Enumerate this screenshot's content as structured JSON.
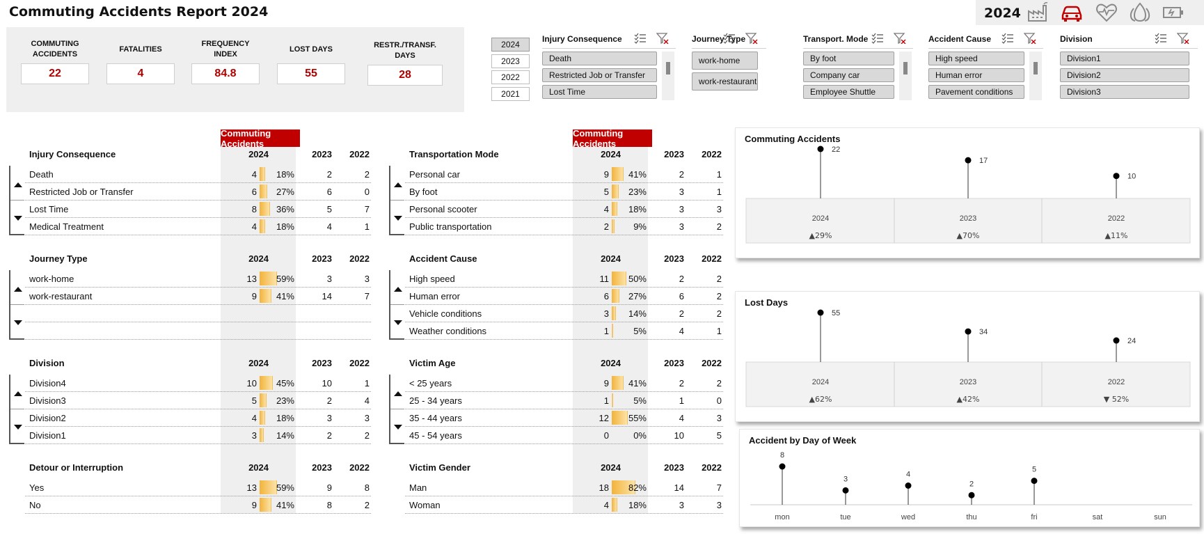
{
  "title": "Commuting Accidents Report 2024",
  "topbar": {
    "year": "2024",
    "icons": [
      "factory-icon",
      "car-icon",
      "heart-pulse-icon",
      "fire-icon",
      "battery-icon"
    ],
    "active_icon_color": "#c00000"
  },
  "kpis": [
    {
      "label": "COMMUTING ACCIDENTS",
      "value": "22"
    },
    {
      "label": "FATALITIES",
      "value": "4"
    },
    {
      "label": "FREQUENCY INDEX",
      "value": "84.8"
    },
    {
      "label": "LOST DAYS",
      "value": "55"
    },
    {
      "label": "RESTR./TRANSF. DAYS",
      "value": "28"
    }
  ],
  "years": [
    "2024",
    "2023",
    "2022",
    "2021"
  ],
  "slicers": [
    {
      "title": "Injury Consequence",
      "items": [
        "Death",
        "Restricted Job or Transfer",
        "Lost Time"
      ]
    },
    {
      "title": "Journey Type",
      "items": [
        "work-home",
        "work-restaurant"
      ]
    },
    {
      "title": "Transport. Mode",
      "items": [
        "By foot",
        "Company car",
        "Employee Shuttle"
      ]
    },
    {
      "title": "Accident Cause",
      "items": [
        "High speed",
        "Human error",
        "Pavement conditions"
      ]
    },
    {
      "title": "Division",
      "items": [
        "Division1",
        "Division2",
        "Division3"
      ]
    }
  ],
  "tables": {
    "header": "Commuting Accidents",
    "cols": [
      "2024",
      "2023",
      "2022"
    ],
    "left": [
      {
        "title": "Injury Consequence",
        "rows": [
          {
            "name": "Death",
            "v24": "4",
            "pct": "18%",
            "f": 0.18,
            "v23": "2",
            "v22": "2"
          },
          {
            "name": "Restricted Job or Transfer",
            "v24": "6",
            "pct": "27%",
            "f": 0.27,
            "v23": "6",
            "v22": "0"
          },
          {
            "name": "Lost Time",
            "v24": "8",
            "pct": "36%",
            "f": 0.36,
            "v23": "5",
            "v22": "7"
          },
          {
            "name": "Medical Treatment",
            "v24": "4",
            "pct": "18%",
            "f": 0.18,
            "v23": "4",
            "v22": "1"
          }
        ]
      },
      {
        "title": "Journey Type",
        "rows": [
          {
            "name": "work-home",
            "v24": "13",
            "pct": "59%",
            "f": 0.59,
            "v23": "3",
            "v22": "3"
          },
          {
            "name": "work-restaurant",
            "v24": "9",
            "pct": "41%",
            "f": 0.41,
            "v23": "14",
            "v22": "7"
          },
          {
            "name": "",
            "v24": "",
            "pct": "",
            "f": 0,
            "v23": "",
            "v22": ""
          },
          {
            "name": "",
            "v24": "",
            "pct": "",
            "f": 0,
            "v23": "",
            "v22": ""
          }
        ]
      },
      {
        "title": "Division",
        "rows": [
          {
            "name": "Division4",
            "v24": "10",
            "pct": "45%",
            "f": 0.45,
            "v23": "10",
            "v22": "1"
          },
          {
            "name": "Division3",
            "v24": "5",
            "pct": "23%",
            "f": 0.23,
            "v23": "2",
            "v22": "4"
          },
          {
            "name": "Division2",
            "v24": "4",
            "pct": "18%",
            "f": 0.18,
            "v23": "3",
            "v22": "3"
          },
          {
            "name": "Division1",
            "v24": "3",
            "pct": "14%",
            "f": 0.14,
            "v23": "2",
            "v22": "2"
          }
        ]
      },
      {
        "title": "Detour or Interruption",
        "rows": [
          {
            "name": "Yes",
            "v24": "13",
            "pct": "59%",
            "f": 0.59,
            "v23": "9",
            "v22": "8"
          },
          {
            "name": "No",
            "v24": "9",
            "pct": "41%",
            "f": 0.41,
            "v23": "8",
            "v22": "2"
          }
        ]
      }
    ],
    "right": [
      {
        "title": "Transportation Mode",
        "rows": [
          {
            "name": "Personal car",
            "v24": "9",
            "pct": "41%",
            "f": 0.41,
            "v23": "2",
            "v22": "1"
          },
          {
            "name": "By foot",
            "v24": "5",
            "pct": "23%",
            "f": 0.23,
            "v23": "3",
            "v22": "1"
          },
          {
            "name": "Personal scooter",
            "v24": "4",
            "pct": "18%",
            "f": 0.18,
            "v23": "3",
            "v22": "3"
          },
          {
            "name": "Public transportation",
            "v24": "2",
            "pct": "9%",
            "f": 0.09,
            "v23": "3",
            "v22": "2"
          }
        ]
      },
      {
        "title": "Accident Cause",
        "rows": [
          {
            "name": "High speed",
            "v24": "11",
            "pct": "50%",
            "f": 0.5,
            "v23": "2",
            "v22": "2"
          },
          {
            "name": "Human error",
            "v24": "6",
            "pct": "27%",
            "f": 0.27,
            "v23": "6",
            "v22": "2"
          },
          {
            "name": "Vehicle conditions",
            "v24": "3",
            "pct": "14%",
            "f": 0.14,
            "v23": "2",
            "v22": "2"
          },
          {
            "name": "Weather conditions",
            "v24": "1",
            "pct": "5%",
            "f": 0.05,
            "v23": "4",
            "v22": "1"
          }
        ]
      },
      {
        "title": "Victim Age",
        "rows": [
          {
            "name": "< 25 years",
            "v24": "9",
            "pct": "41%",
            "f": 0.41,
            "v23": "2",
            "v22": "2"
          },
          {
            "name": "25 - 34 years",
            "v24": "1",
            "pct": "5%",
            "f": 0.05,
            "v23": "1",
            "v22": "0"
          },
          {
            "name": "35 - 44 years",
            "v24": "12",
            "pct": "55%",
            "f": 0.55,
            "v23": "4",
            "v22": "3"
          },
          {
            "name": "45 - 54 years",
            "v24": "0",
            "pct": "0%",
            "f": 0,
            "v23": "10",
            "v22": "5"
          }
        ]
      },
      {
        "title": "Victim Gender",
        "rows": [
          {
            "name": "Man",
            "v24": "18",
            "pct": "82%",
            "f": 0.82,
            "v23": "14",
            "v22": "7"
          },
          {
            "name": "Woman",
            "v24": "4",
            "pct": "18%",
            "f": 0.18,
            "v23": "3",
            "v22": "3"
          }
        ]
      }
    ]
  },
  "chart_data": [
    {
      "type": "line",
      "title": "Commuting Accidents",
      "categories": [
        "2024",
        "2023",
        "2022"
      ],
      "values": [
        22,
        17,
        10
      ],
      "changes": [
        "▲29%",
        "▲70%",
        "▲11%"
      ]
    },
    {
      "type": "line",
      "title": "Lost Days",
      "categories": [
        "2024",
        "2023",
        "2022"
      ],
      "values": [
        55,
        34,
        24
      ],
      "changes": [
        "▲62%",
        "▲42%",
        "▼ 52%"
      ]
    },
    {
      "type": "line",
      "title": "Accident by Day of Week",
      "categories": [
        "mon",
        "tue",
        "wed",
        "thu",
        "fri",
        "sat",
        "sun"
      ],
      "values": [
        8,
        3,
        4,
        2,
        5,
        null,
        null
      ]
    }
  ]
}
